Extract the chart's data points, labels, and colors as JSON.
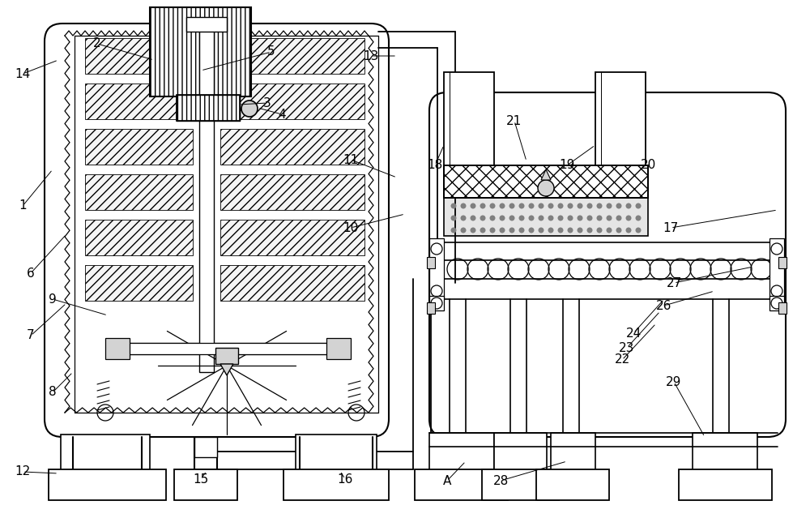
{
  "background_color": "#ffffff",
  "line_color": "#000000",
  "fig_width": 10.0,
  "fig_height": 6.39
}
